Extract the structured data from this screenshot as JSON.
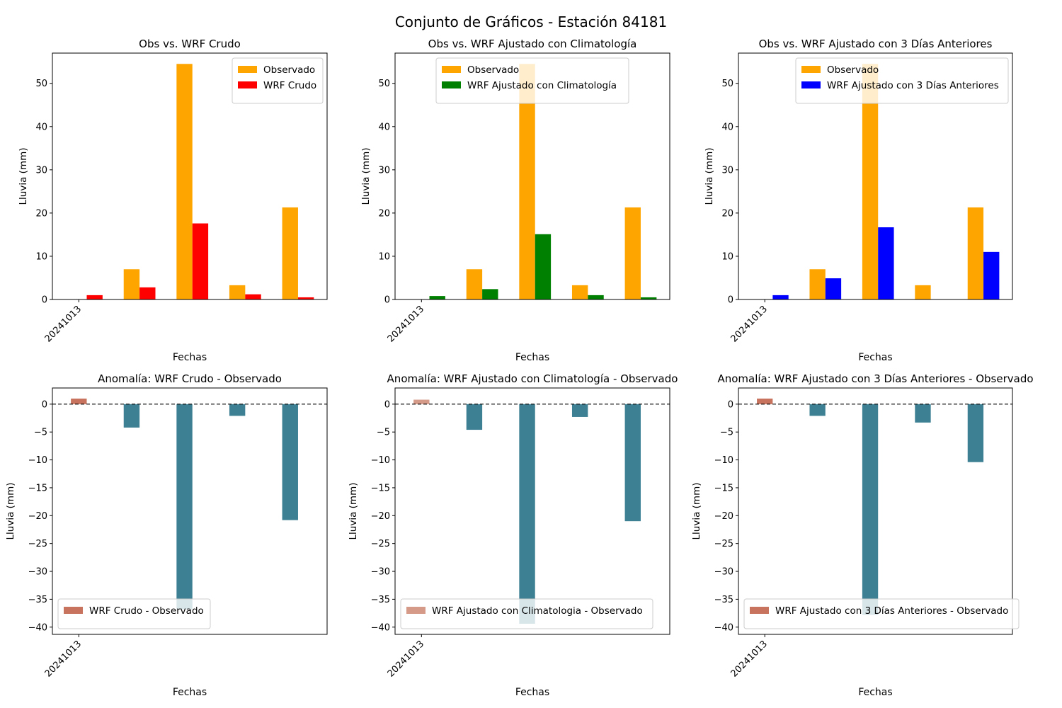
{
  "figure": {
    "title": "Conjunto de Gráficos - Estación 84181"
  },
  "colors": {
    "observed": "#FFA500",
    "crudo": "#FF0000",
    "clim": "#008000",
    "tres": "#0000FF",
    "anom_neg": "#3D8094",
    "anom_pos_crudo": "#C8735E",
    "anom_pos_clim": "#D59A88",
    "anom_pos_tres": "#C8735E"
  },
  "chart_data": [
    {
      "type": "bar",
      "title": "Obs vs. WRF Crudo",
      "xlabel": "Fechas",
      "ylabel": "Lluvia (mm)",
      "tick_labels": [
        "20241013"
      ],
      "ylim": [
        0,
        57
      ],
      "yticks": [
        0,
        10,
        20,
        30,
        40,
        50
      ],
      "legend": "top-right",
      "series": [
        {
          "name": "Observado",
          "color": "#FFA500",
          "values": [
            0,
            7.0,
            54.5,
            3.3,
            21.3
          ]
        },
        {
          "name": "WRF Crudo",
          "color": "#FF0000",
          "values": [
            1.0,
            2.8,
            17.6,
            1.2,
            0.5
          ]
        }
      ]
    },
    {
      "type": "bar",
      "title": "Obs vs. WRF Ajustado con Climatología",
      "xlabel": "Fechas",
      "ylabel": "Lluvia (mm)",
      "tick_labels": [
        "20241013"
      ],
      "ylim": [
        0,
        57
      ],
      "yticks": [
        0,
        10,
        20,
        30,
        40,
        50
      ],
      "legend": "top-center",
      "series": [
        {
          "name": "Observado",
          "color": "#FFA500",
          "values": [
            0,
            7.0,
            54.5,
            3.3,
            21.3
          ]
        },
        {
          "name": "WRF Ajustado con Climatología",
          "color": "#008000",
          "values": [
            0.8,
            2.4,
            15.1,
            1.0,
            0.5
          ]
        }
      ]
    },
    {
      "type": "bar",
      "title": "Obs vs. WRF Ajustado con 3 Días Anteriores",
      "xlabel": "Fechas",
      "ylabel": "Lluvia (mm)",
      "tick_labels": [
        "20241013"
      ],
      "ylim": [
        0,
        57
      ],
      "yticks": [
        0,
        10,
        20,
        30,
        40,
        50
      ],
      "legend": "top-right",
      "series": [
        {
          "name": "Observado",
          "color": "#FFA500",
          "values": [
            0,
            7.0,
            54.5,
            3.3,
            21.3
          ]
        },
        {
          "name": "WRF Ajustado con 3 Días Anteriores",
          "color": "#0000FF",
          "values": [
            1.0,
            4.9,
            16.7,
            0,
            11.0
          ]
        }
      ]
    },
    {
      "type": "bar",
      "title": "Anomalía: WRF Crudo - Observado",
      "xlabel": "Fechas",
      "ylabel": "Lluvia (mm)",
      "tick_labels": [
        "20241013"
      ],
      "ylim": [
        -41.3,
        2.9
      ],
      "yticks": [
        0,
        -5,
        -10,
        -15,
        -20,
        -25,
        -30,
        -35,
        -40
      ],
      "legend": "bottom-left",
      "series": [
        {
          "name": "WRF Crudo - Observado",
          "color": "#C8735E",
          "values": [
            1.0,
            -4.2,
            -36.8,
            -2.1,
            -20.8
          ]
        }
      ]
    },
    {
      "type": "bar",
      "title": "Anomalía: WRF Ajustado con Climatología - Observado",
      "xlabel": "Fechas",
      "ylabel": "Lluvia (mm)",
      "tick_labels": [
        "20241013"
      ],
      "ylim": [
        -41.3,
        2.9
      ],
      "yticks": [
        0,
        -5,
        -10,
        -15,
        -20,
        -25,
        -30,
        -35,
        -40
      ],
      "legend": "bottom-left",
      "series": [
        {
          "name": "WRF Ajustado con Climatologia - Observado",
          "color": "#D59A88",
          "values": [
            0.8,
            -4.6,
            -39.4,
            -2.3,
            -21.0
          ]
        }
      ]
    },
    {
      "type": "bar",
      "title": "Anomalía: WRF Ajustado con 3 Días Anteriores - Observado",
      "xlabel": "Fechas",
      "ylabel": "Lluvia (mm)",
      "tick_labels": [
        "20241013"
      ],
      "ylim": [
        -41.3,
        2.9
      ],
      "yticks": [
        0,
        -5,
        -10,
        -15,
        -20,
        -25,
        -30,
        -35,
        -40
      ],
      "legend": "bottom-left",
      "series": [
        {
          "name": "WRF Ajustado con 3 Días Anteriores - Observado",
          "color": "#C8735E",
          "values": [
            1.0,
            -2.1,
            -37.8,
            -3.3,
            -10.4
          ]
        }
      ]
    }
  ]
}
